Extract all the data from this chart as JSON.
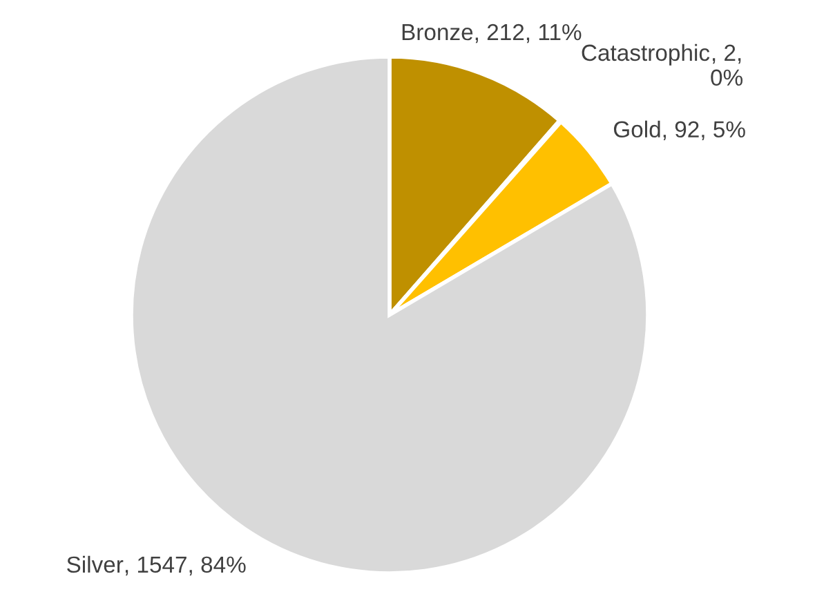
{
  "chart_data": {
    "type": "pie",
    "categories": [
      "Bronze",
      "Catastrophic",
      "Gold",
      "Silver"
    ],
    "values": [
      212,
      2,
      92,
      1547
    ],
    "colors": [
      "#bf9000",
      "#7f6000",
      "#ffc000",
      "#d9d9d9"
    ],
    "value_labels": [
      ", 212, 11%",
      ", 2,\n0%",
      ", 92, 5%",
      ", 1547, 84%"
    ],
    "legend": false
  }
}
